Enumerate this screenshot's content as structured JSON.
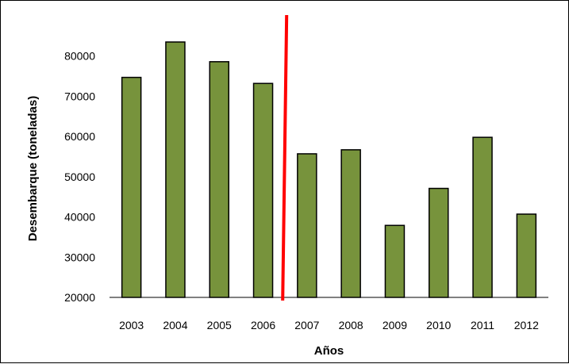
{
  "chart_data": {
    "type": "bar",
    "title": "",
    "xlabel": "Años",
    "ylabel": "Desembarque (toneladas)",
    "categories": [
      "2003",
      "2004",
      "2005",
      "2006",
      "2007",
      "2008",
      "2009",
      "2010",
      "2011",
      "2012"
    ],
    "values": [
      74700,
      83500,
      78600,
      73200,
      55700,
      56700,
      37900,
      47100,
      59800,
      40700
    ],
    "ylim": [
      20000,
      90000
    ],
    "yticks": [
      "20000",
      "30000",
      "40000",
      "50000",
      "60000",
      "70000",
      "80000"
    ],
    "grid": false,
    "legend": "none",
    "bar_color": "#77933c",
    "bar_edge_color": "#000000",
    "annotations": [
      {
        "type": "vertical-line",
        "between": [
          "2006",
          "2007"
        ],
        "color": "#ff0000"
      }
    ]
  }
}
